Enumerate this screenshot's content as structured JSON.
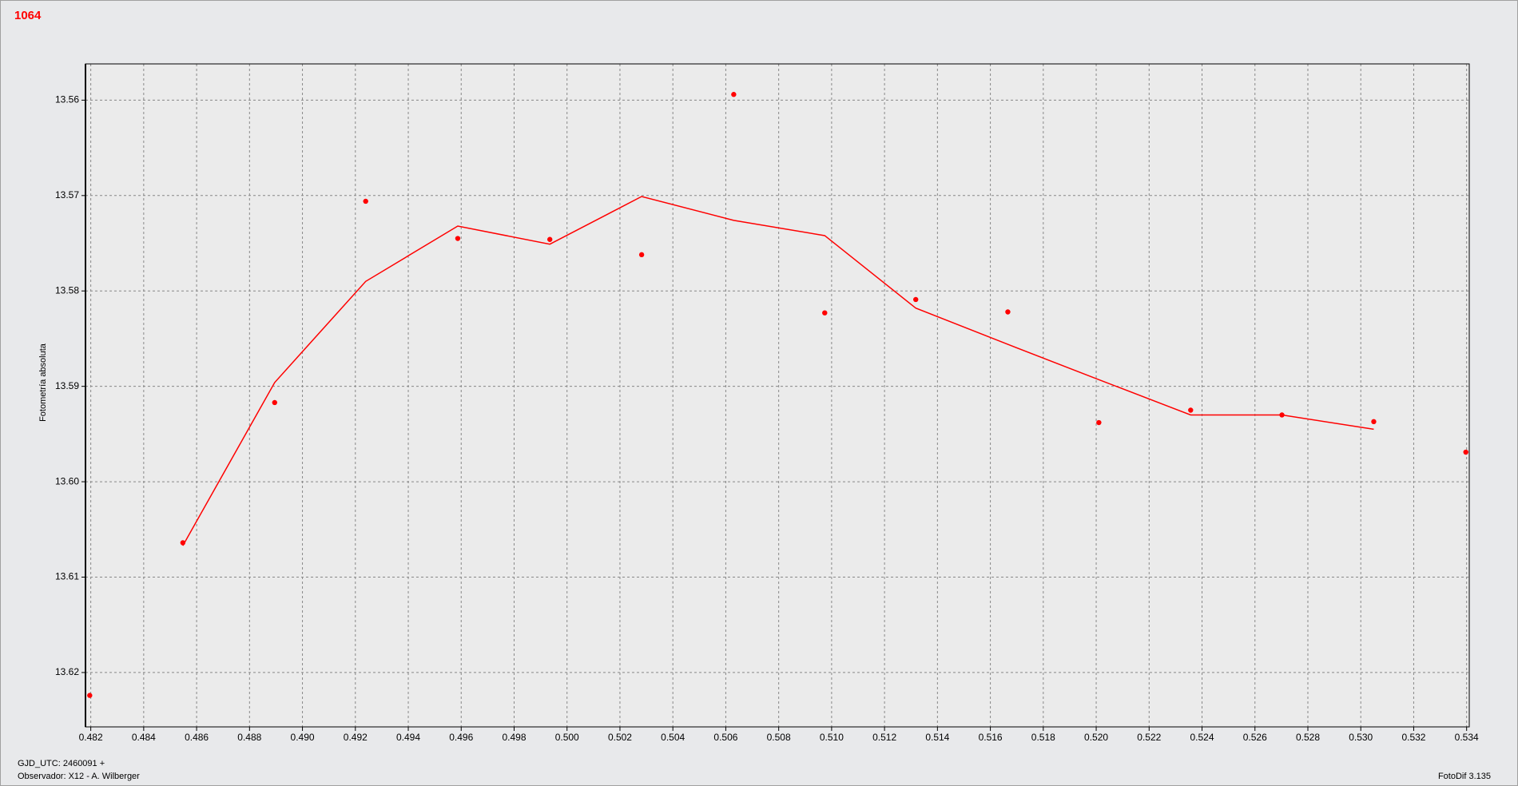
{
  "chart_data": {
    "type": "scatter",
    "title": "1064",
    "y_label": "Fotometría absoluta",
    "footer_lines": [
      "GJD_UTC: 2460091 +",
      "Observador: X12 - A. Wilberger"
    ],
    "footer_right": "FotoDif 3.135",
    "x": [
      0.48196,
      0.48548,
      0.48895,
      0.49239,
      0.49587,
      0.49935,
      0.50282,
      0.5063,
      0.50974,
      0.51318,
      0.51666,
      0.5201,
      0.52357,
      0.52702,
      0.53049,
      0.53397
    ],
    "series": [
      {
        "style": "markers",
        "color": "#ff0000",
        "values": [
          13.6224,
          13.6064,
          13.5917,
          13.5706,
          13.5745,
          13.5746,
          13.5762,
          13.5594,
          13.5823,
          13.5809,
          13.5822,
          13.5938,
          13.5925,
          13.593,
          13.5937,
          13.5969
        ]
      },
      {
        "style": "line",
        "color": "#ff0000",
        "values": [
          null,
          13.6067,
          13.5896,
          13.579,
          13.5732,
          13.5751,
          13.5701,
          13.5726,
          13.5742,
          13.5818,
          13.5856,
          13.5893,
          13.593,
          13.593,
          13.5945,
          null
        ]
      }
    ],
    "xlim": [
      0.4818,
      0.5341
    ],
    "ylim": [
      13.5562,
      13.6257
    ],
    "y_inverted": true,
    "grid": true,
    "xticks": [
      0.482,
      0.484,
      0.486,
      0.488,
      {
        "value": 0.49,
        "label": "0.490"
      },
      0.492,
      0.494,
      0.496,
      0.498,
      {
        "value": 0.5,
        "label": "0.500"
      },
      0.502,
      0.504,
      0.506,
      0.508,
      {
        "value": 0.51,
        "label": "0.510"
      },
      0.512,
      0.514,
      0.516,
      0.518,
      {
        "value": 0.52,
        "label": "0.520"
      },
      0.522,
      0.524,
      0.526,
      0.528,
      {
        "value": 0.53,
        "label": "0.530"
      },
      0.532,
      0.534
    ],
    "yticks": [
      13.56,
      13.57,
      13.58,
      13.59,
      {
        "value": 13.6,
        "label": "13.60"
      },
      13.61,
      13.62
    ]
  }
}
